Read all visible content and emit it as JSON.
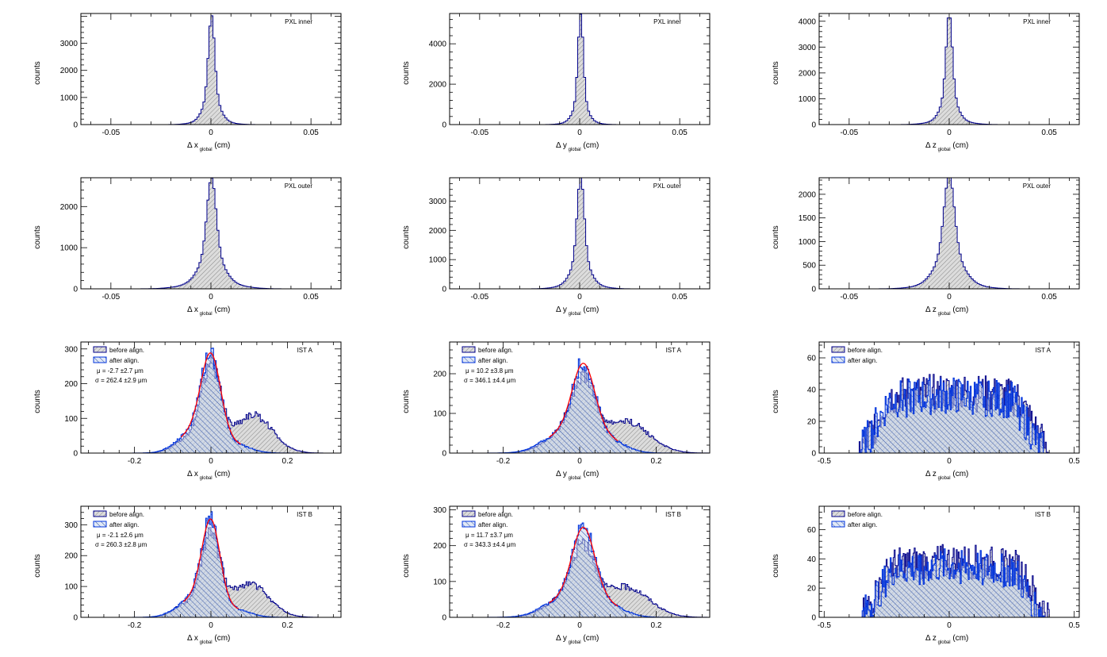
{
  "chart_data": [
    {
      "id": "p1",
      "type": "histogram",
      "tag": "PXL inner",
      "xlabel": "Δ x",
      "xsub": "global",
      "xunit": "(cm)",
      "ylabel": "counts",
      "xlim": [
        -0.065,
        0.065
      ],
      "ylim": [
        0,
        4100
      ],
      "xticks": [
        -0.05,
        0,
        0.05
      ],
      "yticks": [
        0,
        1000,
        2000,
        3000
      ],
      "series": [
        {
          "role": "before",
          "peak": 3850,
          "center": 0.0003,
          "sigma": 0.0015,
          "w": 0.75,
          "tailW": 0.05,
          "tailS": 0.007
        }
      ]
    },
    {
      "id": "p2",
      "type": "histogram",
      "tag": "PXL inner",
      "xlabel": "Δ y",
      "xsub": "global",
      "xunit": "(cm)",
      "ylabel": "counts",
      "xlim": [
        -0.065,
        0.065
      ],
      "ylim": [
        0,
        5500
      ],
      "xticks": [
        -0.05,
        0,
        0.05
      ],
      "yticks": [
        0,
        2000,
        4000
      ],
      "series": [
        {
          "role": "before",
          "peak": 5250,
          "center": 0.0005,
          "sigma": 0.0013,
          "w": 0.8,
          "tailW": 0.04,
          "tailS": 0.006
        }
      ]
    },
    {
      "id": "p3",
      "type": "histogram",
      "tag": "PXL inner",
      "xlabel": "Δ z",
      "xsub": "global",
      "xunit": "(cm)",
      "ylabel": "counts",
      "xlim": [
        -0.065,
        0.065
      ],
      "ylim": [
        0,
        4300
      ],
      "xticks": [
        -0.05,
        0,
        0.05
      ],
      "yticks": [
        0,
        1000,
        2000,
        3000,
        4000
      ],
      "series": [
        {
          "role": "before",
          "peak": 4100,
          "center": 0.0,
          "sigma": 0.0015,
          "w": 0.75,
          "tailW": 0.05,
          "tailS": 0.008
        }
      ]
    },
    {
      "id": "p4",
      "type": "histogram",
      "tag": "PXL outer",
      "xlabel": "Δ x",
      "xsub": "global",
      "xunit": "(cm)",
      "ylabel": "counts",
      "xlim": [
        -0.065,
        0.065
      ],
      "ylim": [
        0,
        2700
      ],
      "xticks": [
        -0.05,
        0,
        0.05
      ],
      "yticks": [
        0,
        1000,
        2000
      ],
      "series": [
        {
          "role": "before",
          "peak": 2500,
          "center": 0.0003,
          "sigma": 0.0022,
          "w": 0.7,
          "tailW": 0.08,
          "tailS": 0.011
        }
      ]
    },
    {
      "id": "p5",
      "type": "histogram",
      "tag": "PXL outer",
      "xlabel": "Δ y",
      "xsub": "global",
      "xunit": "(cm)",
      "ylabel": "counts",
      "xlim": [
        -0.065,
        0.065
      ],
      "ylim": [
        0,
        3800
      ],
      "xticks": [
        -0.05,
        0,
        0.05
      ],
      "yticks": [
        0,
        1000,
        2000,
        3000
      ],
      "series": [
        {
          "role": "before",
          "peak": 3650,
          "center": 0.0005,
          "sigma": 0.0017,
          "w": 0.75,
          "tailW": 0.06,
          "tailS": 0.008
        }
      ]
    },
    {
      "id": "p6",
      "type": "histogram",
      "tag": "PXL outer",
      "xlabel": "Δ z",
      "xsub": "global",
      "xunit": "(cm)",
      "ylabel": "counts",
      "xlim": [
        -0.065,
        0.065
      ],
      "ylim": [
        0,
        2350
      ],
      "xticks": [
        -0.05,
        0,
        0.05
      ],
      "yticks": [
        0,
        500,
        1000,
        1500,
        2000
      ],
      "series": [
        {
          "role": "before",
          "peak": 2230,
          "center": 0.0,
          "sigma": 0.0025,
          "w": 0.7,
          "tailW": 0.08,
          "tailS": 0.011
        }
      ]
    },
    {
      "id": "p7",
      "type": "histogram",
      "tag": "IST A",
      "xlabel": "Δ x",
      "xsub": "global",
      "xunit": "(cm)",
      "ylabel": "counts",
      "xlim": [
        -0.34,
        0.34
      ],
      "ylim": [
        0,
        320
      ],
      "xticks": [
        -0.2,
        0,
        0.2
      ],
      "yticks": [
        0,
        100,
        200,
        300
      ],
      "legend": [
        "before align.",
        "after align."
      ],
      "stats": {
        "mu": "μ = -2.7 ±2.7  μm",
        "sigma": "σ = 262.4 ±2.9  μm"
      },
      "series": [
        {
          "role": "before",
          "components": [
            {
              "a": 240,
              "m": 0,
              "s": 0.026
            },
            {
              "a": 110,
              "m": 0.11,
              "s": 0.05
            },
            {
              "a": 40,
              "m": -0.06,
              "s": 0.035
            }
          ]
        },
        {
          "role": "after",
          "components": [
            {
              "a": 255,
              "m": 0,
              "s": 0.026
            },
            {
              "a": 55,
              "m": -0.05,
              "s": 0.04
            },
            {
              "a": 25,
              "m": 0.06,
              "s": 0.04
            }
          ]
        }
      ]
    },
    {
      "id": "p8",
      "type": "histogram",
      "tag": "IST A",
      "xlabel": "Δ y",
      "xsub": "global",
      "xunit": "(cm)",
      "ylabel": "counts",
      "xlim": [
        -0.34,
        0.34
      ],
      "ylim": [
        0,
        280
      ],
      "xticks": [
        -0.2,
        0,
        0.2
      ],
      "yticks": [
        0,
        100,
        200
      ],
      "legend": [
        "before align.",
        "after align."
      ],
      "stats": {
        "mu": "μ = 10.2 ±3.8  μm",
        "sigma": "σ = 346.1 ±4.4  μm"
      },
      "series": [
        {
          "role": "before",
          "components": [
            {
              "a": 150,
              "m": 0.01,
              "s": 0.03
            },
            {
              "a": 80,
              "m": 0.12,
              "s": 0.06
            },
            {
              "a": 50,
              "m": -0.04,
              "s": 0.05
            }
          ]
        },
        {
          "role": "after",
          "components": [
            {
              "a": 190,
              "m": 0.01,
              "s": 0.03
            },
            {
              "a": 45,
              "m": -0.05,
              "s": 0.05
            },
            {
              "a": 35,
              "m": 0.07,
              "s": 0.045
            }
          ]
        }
      ]
    },
    {
      "id": "p9",
      "type": "histogram",
      "tag": "IST A",
      "xlabel": "Δ z",
      "xsub": "global",
      "xunit": "(cm)",
      "ylabel": "counts",
      "xlim": [
        -0.52,
        0.52
      ],
      "ylim": [
        0,
        70
      ],
      "xticks": [
        -0.5,
        0,
        0.5
      ],
      "yticks": [
        0,
        20,
        40,
        60
      ],
      "legend": [
        "before align.",
        "after align."
      ],
      "series": [
        {
          "role": "before",
          "flat": 38,
          "range": [
            -0.36,
            0.4
          ],
          "noise": 12
        },
        {
          "role": "after",
          "flat": 36,
          "range": [
            -0.36,
            0.38
          ],
          "noise": 12
        }
      ]
    },
    {
      "id": "p10",
      "type": "histogram",
      "tag": "IST B",
      "xlabel": "Δ x",
      "xsub": "global",
      "xunit": "(cm)",
      "ylabel": "counts",
      "xlim": [
        -0.34,
        0.34
      ],
      "ylim": [
        0,
        360
      ],
      "xticks": [
        -0.2,
        0,
        0.2
      ],
      "yticks": [
        0,
        100,
        200,
        300
      ],
      "legend": [
        "before align.",
        "after align."
      ],
      "stats": {
        "mu": "μ = -2.1 ±2.6  μm",
        "sigma": "σ = 260.3 ±2.8  μm"
      },
      "series": [
        {
          "role": "before",
          "components": [
            {
              "a": 250,
              "m": 0,
              "s": 0.024
            },
            {
              "a": 110,
              "m": 0.1,
              "s": 0.05
            },
            {
              "a": 45,
              "m": -0.06,
              "s": 0.035
            }
          ]
        },
        {
          "role": "after",
          "components": [
            {
              "a": 285,
              "m": 0,
              "s": 0.024
            },
            {
              "a": 55,
              "m": -0.05,
              "s": 0.04
            },
            {
              "a": 25,
              "m": 0.06,
              "s": 0.04
            }
          ]
        }
      ]
    },
    {
      "id": "p11",
      "type": "histogram",
      "tag": "IST B",
      "xlabel": "Δ y",
      "xsub": "global",
      "xunit": "(cm)",
      "ylabel": "counts",
      "xlim": [
        -0.34,
        0.34
      ],
      "ylim": [
        0,
        310
      ],
      "xticks": [
        -0.2,
        0,
        0.2
      ],
      "yticks": [
        0,
        100,
        200,
        300
      ],
      "legend": [
        "before align.",
        "after align."
      ],
      "stats": {
        "mu": "μ = 11.7 ±3.7  μm",
        "sigma": "σ = 343.3 ±4.4  μm"
      },
      "series": [
        {
          "role": "before",
          "components": [
            {
              "a": 165,
              "m": 0.01,
              "s": 0.03
            },
            {
              "a": 85,
              "m": 0.12,
              "s": 0.06
            },
            {
              "a": 50,
              "m": -0.04,
              "s": 0.05
            }
          ]
        },
        {
          "role": "after",
          "components": [
            {
              "a": 215,
              "m": 0.01,
              "s": 0.03
            },
            {
              "a": 45,
              "m": -0.05,
              "s": 0.05
            },
            {
              "a": 35,
              "m": 0.07,
              "s": 0.045
            }
          ]
        }
      ]
    },
    {
      "id": "p12",
      "type": "histogram",
      "tag": "IST B",
      "xlabel": "Δ z",
      "xsub": "global",
      "xunit": "(cm)",
      "ylabel": "counts",
      "xlim": [
        -0.52,
        0.52
      ],
      "ylim": [
        0,
        76
      ],
      "xticks": [
        -0.5,
        0,
        0.5
      ],
      "yticks": [
        0,
        20,
        40,
        60
      ],
      "legend": [
        "before align.",
        "after align."
      ],
      "series": [
        {
          "role": "before",
          "flat": 38,
          "range": [
            -0.35,
            0.4
          ],
          "noise": 12
        },
        {
          "role": "after",
          "flat": 35,
          "range": [
            -0.35,
            0.38
          ],
          "noise": 12
        }
      ]
    }
  ],
  "colors": {
    "before_line": "#00008b",
    "after_line": "#0033dd",
    "fit": "#ff0000",
    "hatch": "#777777",
    "fill_before": "#d0d0d0"
  }
}
